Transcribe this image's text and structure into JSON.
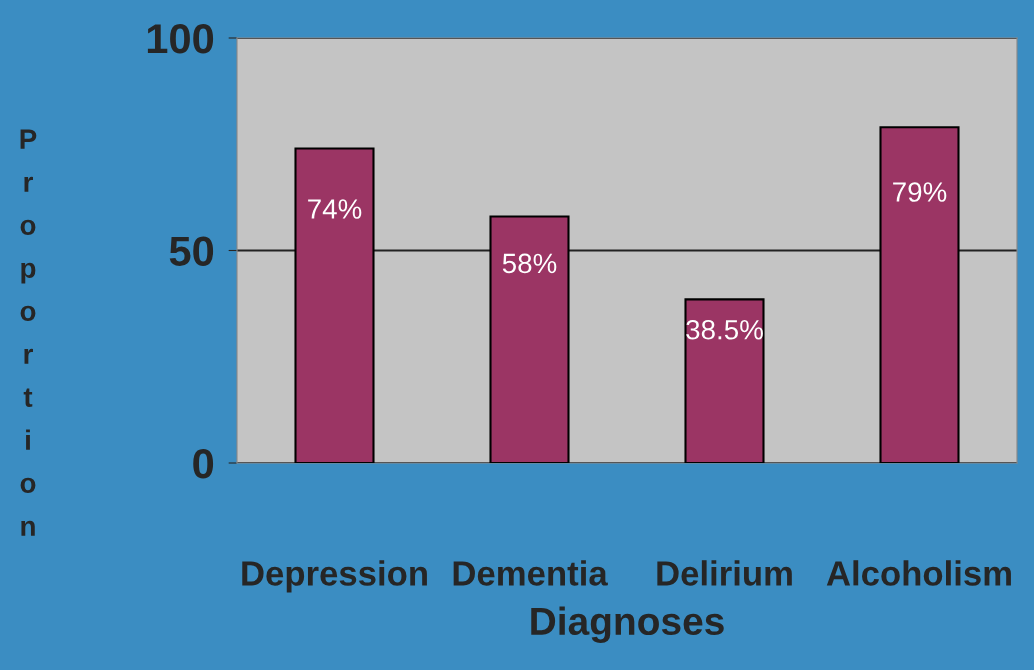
{
  "chart_data": {
    "type": "bar",
    "xlabel": "Diagnoses",
    "ylabel": "Proportion",
    "categories": [
      "Depression",
      "Dementia",
      "Delirium",
      "Alcoholism"
    ],
    "values": [
      74,
      58,
      38.5,
      79
    ],
    "color": "#9b3564",
    "value_labels": [
      "74%",
      "58%",
      "38.5%",
      "79%"
    ],
    "ylim": [
      0,
      100
    ],
    "yticks": [
      0,
      50,
      100
    ],
    "grid": "y"
  }
}
